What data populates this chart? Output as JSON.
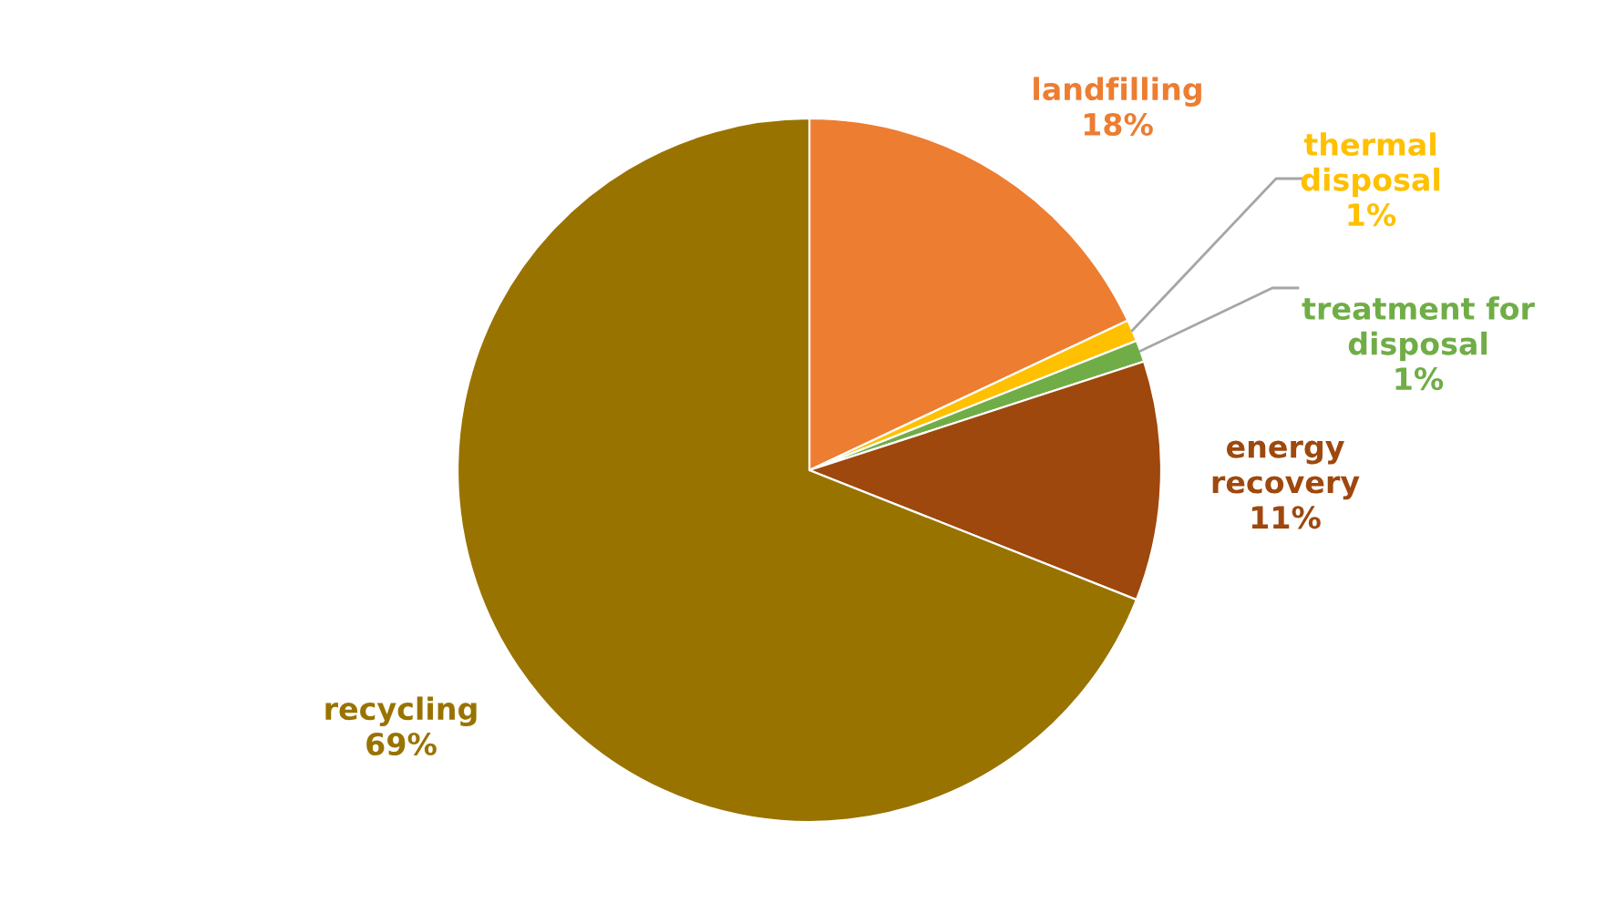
{
  "chart_data": {
    "type": "pie",
    "categories": [
      "landfilling",
      "thermal disposal",
      "treatment for disposal",
      "energy recovery",
      "recycling"
    ],
    "values": [
      18,
      1,
      1,
      11,
      69
    ],
    "value_labels": [
      "18%",
      "1%",
      "1%",
      "11%",
      "69%"
    ],
    "colors": [
      "#ed7d31",
      "#ffc000",
      "#70ad47",
      "#9e480e",
      "#997300"
    ],
    "legend": false
  }
}
